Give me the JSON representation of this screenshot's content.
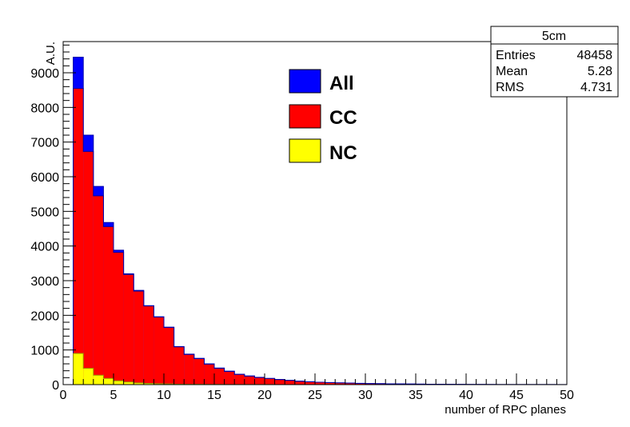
{
  "chart_data": {
    "type": "bar",
    "style": "stacked-overlaid-histogram",
    "title": "",
    "xlabel": "number of RPC planes",
    "ylabel": "A.U.",
    "xlim": [
      0,
      50
    ],
    "ylim": [
      0,
      9900
    ],
    "x_ticks": [
      0,
      5,
      10,
      15,
      20,
      25,
      30,
      35,
      40,
      45,
      50
    ],
    "y_ticks": [
      0,
      1000,
      2000,
      3000,
      4000,
      5000,
      6000,
      7000,
      8000,
      9000
    ],
    "bin_edges": [
      1,
      2,
      3,
      4,
      5,
      6,
      7,
      8,
      9,
      10,
      11,
      12,
      13,
      14,
      15,
      16,
      17,
      18,
      19,
      20,
      21,
      22,
      23,
      24,
      25,
      26,
      27,
      28,
      29,
      30,
      31,
      32,
      33,
      34,
      35,
      36,
      37,
      38,
      39,
      40,
      41,
      42,
      43,
      44,
      45,
      46,
      47,
      48,
      49,
      50
    ],
    "series": [
      {
        "name": "All",
        "color": "#0000ff",
        "values": [
          9450,
          7200,
          5720,
          4680,
          3880,
          3200,
          2720,
          2280,
          1960,
          1660,
          1100,
          880,
          760,
          600,
          480,
          390,
          300,
          250,
          210,
          180,
          150,
          125,
          100,
          85,
          70,
          60,
          52,
          45,
          38,
          32,
          28,
          24,
          20,
          17,
          15,
          13,
          11,
          9,
          8,
          7,
          6,
          5,
          4,
          4,
          3,
          3,
          2,
          2,
          2
        ]
      },
      {
        "name": "CC",
        "color": "#ff0000",
        "values": [
          8550,
          6730,
          5450,
          4560,
          3820,
          3180,
          2700,
          2270,
          1950,
          1650,
          1090,
          870,
          750,
          590,
          470,
          380,
          295,
          245,
          205,
          175,
          145,
          120,
          96,
          82,
          68,
          58,
          50,
          43,
          36,
          30,
          26,
          22,
          19,
          16,
          14,
          12,
          10,
          8,
          7,
          6,
          5,
          4,
          4,
          3,
          3,
          2,
          2,
          2,
          1
        ]
      },
      {
        "name": "NC",
        "color": "#ffff00",
        "values": [
          900,
          470,
          270,
          180,
          110,
          75,
          50,
          35,
          25,
          20,
          12,
          10,
          8,
          6,
          5,
          4,
          3,
          2,
          2,
          2,
          1,
          1,
          1,
          1,
          1,
          1,
          1,
          0,
          0,
          0,
          0,
          0,
          0,
          0,
          0,
          0,
          0,
          0,
          0,
          0,
          0,
          0,
          0,
          0,
          0,
          0,
          0,
          0,
          0
        ]
      }
    ],
    "legend": {
      "placement": "top-center",
      "entries": [
        {
          "label": "All",
          "color": "#0000ff"
        },
        {
          "label": "CC",
          "color": "#ff0000"
        },
        {
          "label": "NC",
          "color": "#ffff00"
        }
      ]
    },
    "stats_box": {
      "title": "5cm",
      "rows": [
        {
          "label": "Entries",
          "value": "48458"
        },
        {
          "label": "Mean",
          "value": "5.28"
        },
        {
          "label": "RMS",
          "value": "4.731"
        }
      ]
    },
    "grid": false
  }
}
